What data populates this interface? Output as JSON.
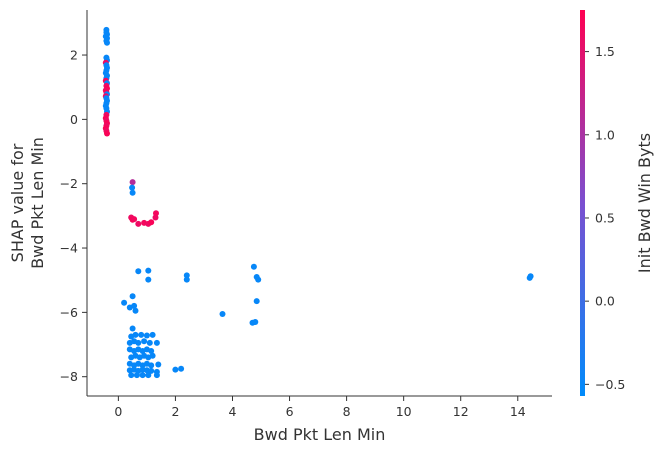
{
  "chart_data": {
    "type": "scatter",
    "xlabel": "Bwd Pkt Len Min",
    "ylabel_lines": [
      "SHAP value for",
      "Bwd Pkt Len Min"
    ],
    "colorbar_label": "Init Bwd Win Byts",
    "xlim": [
      -1.1,
      15.2
    ],
    "ylim": [
      -8.6,
      3.4
    ],
    "xticks": [
      0,
      2,
      4,
      6,
      8,
      10,
      12,
      14
    ],
    "yticks": [
      -8,
      -6,
      -4,
      -2,
      0,
      2
    ],
    "colorbar_range": [
      -0.57,
      1.75
    ],
    "colorbar_ticks": [
      -0.5,
      0.0,
      0.5,
      1.0,
      1.5
    ],
    "colors": {
      "low": "#008bfb",
      "mid": "#7b4fd0",
      "high": "#ff0052"
    },
    "points": [
      [
        -0.42,
        2.78,
        -0.5
      ],
      [
        -0.42,
        2.7,
        -0.5
      ],
      [
        -0.4,
        2.64,
        -0.5
      ],
      [
        -0.44,
        2.58,
        -0.5
      ],
      [
        -0.4,
        2.52,
        -0.5
      ],
      [
        -0.42,
        2.44,
        -0.5
      ],
      [
        -0.4,
        2.38,
        -0.5
      ],
      [
        -0.42,
        1.92,
        -0.5
      ],
      [
        -0.4,
        1.84,
        -0.5
      ],
      [
        -0.44,
        1.76,
        1.6
      ],
      [
        -0.42,
        1.68,
        -0.5
      ],
      [
        -0.4,
        1.6,
        -0.5
      ],
      [
        -0.42,
        1.52,
        -0.5
      ],
      [
        -0.44,
        1.44,
        -0.5
      ],
      [
        -0.4,
        1.36,
        -0.5
      ],
      [
        -0.42,
        1.28,
        -0.5
      ],
      [
        -0.44,
        1.2,
        1.65
      ],
      [
        -0.4,
        1.12,
        -0.5
      ],
      [
        -0.42,
        1.04,
        1.6
      ],
      [
        -0.4,
        0.96,
        1.7
      ],
      [
        -0.44,
        0.9,
        1.6
      ],
      [
        -0.42,
        0.84,
        1.7
      ],
      [
        -0.4,
        0.78,
        -0.5
      ],
      [
        -0.44,
        0.72,
        1.6
      ],
      [
        -0.42,
        0.66,
        -0.5
      ],
      [
        -0.4,
        0.58,
        -0.5
      ],
      [
        -0.42,
        0.5,
        -0.5
      ],
      [
        -0.44,
        0.42,
        -0.5
      ],
      [
        -0.42,
        0.34,
        -0.5
      ],
      [
        -0.4,
        0.24,
        -0.5
      ],
      [
        -0.42,
        0.14,
        1.6
      ],
      [
        -0.44,
        0.04,
        1.7
      ],
      [
        -0.42,
        -0.04,
        1.6
      ],
      [
        -0.4,
        -0.12,
        1.7
      ],
      [
        -0.42,
        -0.2,
        1.6
      ],
      [
        -0.44,
        -0.28,
        1.7
      ],
      [
        -0.42,
        -0.36,
        1.6
      ],
      [
        -0.4,
        -0.44,
        1.7
      ],
      [
        0.5,
        -1.95,
        1.1
      ],
      [
        0.48,
        -2.12,
        -0.5
      ],
      [
        0.5,
        -2.28,
        -0.5
      ],
      [
        0.45,
        -3.05,
        1.6
      ],
      [
        0.5,
        -3.12,
        1.7
      ],
      [
        0.55,
        -3.1,
        1.65
      ],
      [
        0.7,
        -3.25,
        1.6
      ],
      [
        0.9,
        -3.22,
        1.65
      ],
      [
        1.05,
        -3.25,
        1.6
      ],
      [
        1.15,
        -3.2,
        1.7
      ],
      [
        1.3,
        -3.05,
        1.6
      ],
      [
        1.32,
        -2.92,
        1.65
      ],
      [
        0.7,
        -4.72,
        -0.5
      ],
      [
        1.05,
        -4.7,
        -0.5
      ],
      [
        1.05,
        -4.98,
        -0.5
      ],
      [
        2.4,
        -4.85,
        -0.5
      ],
      [
        2.4,
        -4.98,
        -0.5
      ],
      [
        4.75,
        -4.58,
        -0.5
      ],
      [
        4.85,
        -4.9,
        -0.5
      ],
      [
        4.9,
        -4.98,
        -0.5
      ],
      [
        14.45,
        -4.88,
        -0.5
      ],
      [
        14.42,
        -4.93,
        -0.5
      ],
      [
        0.2,
        -5.7,
        -0.5
      ],
      [
        0.5,
        -5.5,
        -0.5
      ],
      [
        0.4,
        -5.85,
        -0.5
      ],
      [
        0.6,
        -5.95,
        -0.5
      ],
      [
        0.55,
        -5.8,
        -0.5
      ],
      [
        4.85,
        -5.65,
        -0.5
      ],
      [
        3.65,
        -6.05,
        -0.5
      ],
      [
        4.7,
        -6.32,
        -0.5
      ],
      [
        4.8,
        -6.3,
        -0.5
      ],
      [
        0.5,
        -6.5,
        -0.5
      ],
      [
        0.45,
        -6.75,
        -0.5
      ],
      [
        0.6,
        -6.7,
        -0.5
      ],
      [
        0.8,
        -6.7,
        -0.5
      ],
      [
        1.0,
        -6.72,
        -0.5
      ],
      [
        1.2,
        -6.7,
        -0.5
      ],
      [
        0.4,
        -6.95,
        -0.5
      ],
      [
        0.55,
        -6.9,
        -0.5
      ],
      [
        0.7,
        -6.95,
        -0.5
      ],
      [
        0.9,
        -6.9,
        -0.5
      ],
      [
        1.1,
        -6.95,
        -0.5
      ],
      [
        1.35,
        -6.95,
        -0.5
      ],
      [
        0.4,
        -7.15,
        -0.5
      ],
      [
        0.55,
        -7.2,
        -0.5
      ],
      [
        0.7,
        -7.15,
        -0.5
      ],
      [
        0.85,
        -7.2,
        -0.5
      ],
      [
        1.0,
        -7.15,
        -0.5
      ],
      [
        1.15,
        -7.2,
        -0.5
      ],
      [
        0.45,
        -7.4,
        -0.5
      ],
      [
        0.6,
        -7.35,
        -0.5
      ],
      [
        0.75,
        -7.4,
        -0.5
      ],
      [
        0.9,
        -7.35,
        -0.5
      ],
      [
        1.05,
        -7.4,
        -0.5
      ],
      [
        1.2,
        -7.35,
        -0.5
      ],
      [
        0.4,
        -7.6,
        -0.5
      ],
      [
        0.55,
        -7.65,
        -0.5
      ],
      [
        0.7,
        -7.6,
        -0.5
      ],
      [
        0.85,
        -7.65,
        -0.5
      ],
      [
        1.0,
        -7.6,
        -0.5
      ],
      [
        1.15,
        -7.65,
        -0.5
      ],
      [
        1.4,
        -7.62,
        -0.5
      ],
      [
        0.4,
        -7.8,
        -0.5
      ],
      [
        0.55,
        -7.78,
        -0.5
      ],
      [
        0.7,
        -7.82,
        -0.5
      ],
      [
        0.85,
        -7.78,
        -0.5
      ],
      [
        1.0,
        -7.8,
        -0.5
      ],
      [
        1.15,
        -7.82,
        -0.5
      ],
      [
        1.35,
        -7.85,
        -0.5
      ],
      [
        0.45,
        -7.95,
        -0.5
      ],
      [
        0.65,
        -7.95,
        -0.5
      ],
      [
        0.85,
        -7.95,
        -0.5
      ],
      [
        1.05,
        -7.95,
        -0.5
      ],
      [
        1.35,
        -7.95,
        -0.5
      ],
      [
        2.0,
        -7.78,
        -0.5
      ],
      [
        2.2,
        -7.75,
        -0.5
      ]
    ]
  }
}
